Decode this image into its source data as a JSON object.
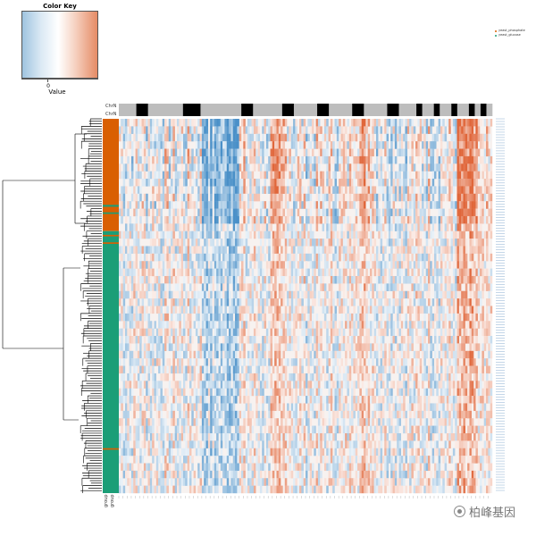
{
  "color_key": {
    "title": "Color Key",
    "tick_label": "0",
    "xlabel": "Value",
    "colors": {
      "low": "#9fc4e0",
      "mid": "#ffffff",
      "high": "#e58b65"
    }
  },
  "track_labels": {
    "top": [
      "ChrN",
      "ChrN"
    ],
    "bottom": [
      "group",
      "group"
    ]
  },
  "legend": {
    "entries": [
      {
        "label": "yeast_phosphate",
        "color": "#d95f02"
      },
      {
        "label": "yeast_glucose",
        "color": "#1b9e77"
      }
    ]
  },
  "watermark": "柏峰基因",
  "chart_data": {
    "type": "heatmap",
    "title": "",
    "xlabel": "",
    "ylabel": "",
    "color_scale": {
      "center": 0,
      "low_color": "#4a90c8",
      "mid_color": "#ffffff",
      "high_color": "#e0663a"
    },
    "column_annotation": {
      "name": "ChrN",
      "colors": [
        "#bdbdbd",
        "#000000"
      ],
      "blocks": [
        3,
        2,
        6,
        3,
        7,
        2,
        5,
        2,
        4,
        2,
        4,
        2,
        4,
        2,
        3,
        1,
        2,
        1,
        2,
        1,
        2,
        1,
        1,
        1,
        1
      ]
    },
    "row_annotation": {
      "name": "group",
      "groups": [
        "yeast_phosphate",
        "yeast_glucose"
      ],
      "colors": [
        "#d95f02",
        "#1b9e77"
      ]
    },
    "rows": 400,
    "cols": 180,
    "dendrogram": "row"
  }
}
